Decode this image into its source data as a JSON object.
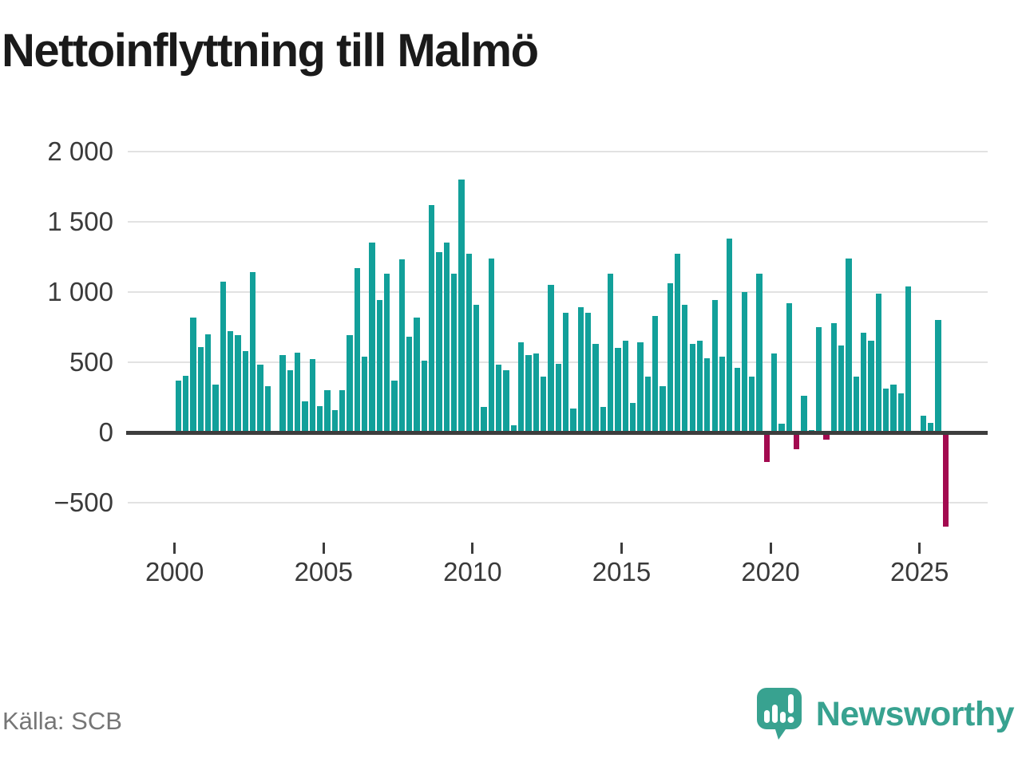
{
  "title": "Nettoinflyttning till Malmö",
  "source": "Källa: SCB",
  "logo": {
    "text": "Newsworthy",
    "icon": "speech-bubble-bar-chart",
    "color": "#38a290"
  },
  "colors": {
    "positive_bar": "#12a09a",
    "negative_bar": "#a30a50",
    "grid": "#e2e2e2",
    "axis": "#3d3d3d",
    "title_text": "#1a1a1a",
    "tick_text": "#3a3a3a",
    "source_text": "#767676",
    "background": "#ffffff"
  },
  "chart_data": {
    "type": "bar",
    "title": "Nettoinflyttning till Malmö",
    "xlabel": "",
    "ylabel": "",
    "period": "quarterly",
    "x_start": "2000Q1",
    "x_end": "2025Q4",
    "ylim": [
      -700,
      2000
    ],
    "grid": true,
    "legend_position": "none",
    "y_axis": {
      "ticks": [
        {
          "value": 2000,
          "label": "2 000"
        },
        {
          "value": 1500,
          "label": "1 500"
        },
        {
          "value": 1000,
          "label": "1 000"
        },
        {
          "value": 500,
          "label": "500"
        },
        {
          "value": 0,
          "label": "0"
        },
        {
          "value": -500,
          "label": "−500"
        }
      ]
    },
    "x_axis": {
      "ticks": [
        {
          "year": 2000,
          "label": "2000"
        },
        {
          "year": 2005,
          "label": "2005"
        },
        {
          "year": 2010,
          "label": "2010"
        },
        {
          "year": 2015,
          "label": "2015"
        },
        {
          "year": 2020,
          "label": "2020"
        },
        {
          "year": 2025,
          "label": "2025"
        }
      ]
    },
    "series": [
      {
        "name": "Nettoinflyttning till Malmö",
        "values": [
          370,
          405,
          820,
          610,
          700,
          340,
          1070,
          720,
          690,
          580,
          1140,
          480,
          330,
          0,
          550,
          440,
          570,
          220,
          520,
          190,
          300,
          160,
          300,
          690,
          1170,
          540,
          1350,
          940,
          1130,
          370,
          1230,
          680,
          820,
          510,
          1620,
          1280,
          1350,
          1130,
          1800,
          1270,
          910,
          180,
          1240,
          480,
          440,
          50,
          640,
          550,
          560,
          400,
          1050,
          490,
          850,
          170,
          890,
          850,
          630,
          180,
          1130,
          600,
          650,
          210,
          640,
          400,
          830,
          330,
          1060,
          1270,
          910,
          630,
          650,
          530,
          940,
          540,
          1380,
          460,
          1000,
          400,
          1130,
          -210,
          560,
          60,
          920,
          -120,
          260,
          20,
          750,
          -50,
          780,
          620,
          1240,
          400,
          710,
          650,
          990,
          310,
          340,
          280,
          1040,
          0,
          120,
          70,
          800,
          -670
        ]
      }
    ]
  }
}
